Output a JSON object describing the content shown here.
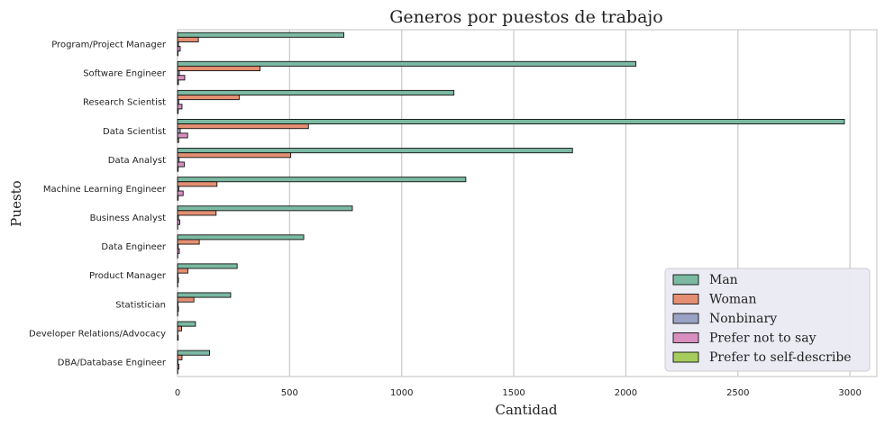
{
  "chart_data": {
    "type": "bar",
    "orientation": "horizontal",
    "title": "Generos por puestos de trabajo",
    "xlabel": "Cantidad",
    "ylabel": "Puesto",
    "xlim": [
      0,
      3120
    ],
    "xticks": [
      0,
      500,
      1000,
      1500,
      2000,
      2500,
      3000
    ],
    "grid": true,
    "legend_position": "lower-right",
    "categories": [
      "Program/Project Manager",
      "Software Engineer",
      "Research Scientist",
      "Data Scientist",
      "Data Analyst",
      "Machine Learning Engineer",
      "Business Analyst",
      "Data Engineer",
      "Product Manager",
      "Statistician",
      "Developer Relations/Advocacy",
      "DBA/Database Engineer"
    ],
    "series": [
      {
        "name": "Man",
        "color": "#7bb9a2",
        "values": [
          742,
          2045,
          1233,
          2975,
          1762,
          1286,
          780,
          563,
          266,
          237,
          80,
          143
        ]
      },
      {
        "name": "Woman",
        "color": "#e48f72",
        "values": [
          93,
          368,
          275,
          584,
          505,
          176,
          172,
          97,
          46,
          73,
          18,
          20
        ]
      },
      {
        "name": "Nonbinary",
        "color": "#9aa3c6",
        "values": [
          4,
          8,
          5,
          12,
          7,
          6,
          4,
          3,
          2,
          2,
          1,
          2
        ]
      },
      {
        "name": "Prefer not to say",
        "color": "#d88fc0",
        "values": [
          12,
          32,
          20,
          45,
          30,
          25,
          10,
          8,
          4,
          4,
          3,
          6
        ]
      },
      {
        "name": "Prefer to self-describe",
        "color": "#a6cc5d",
        "values": [
          2,
          4,
          3,
          5,
          3,
          3,
          1,
          1,
          1,
          1,
          0,
          1
        ]
      }
    ]
  }
}
